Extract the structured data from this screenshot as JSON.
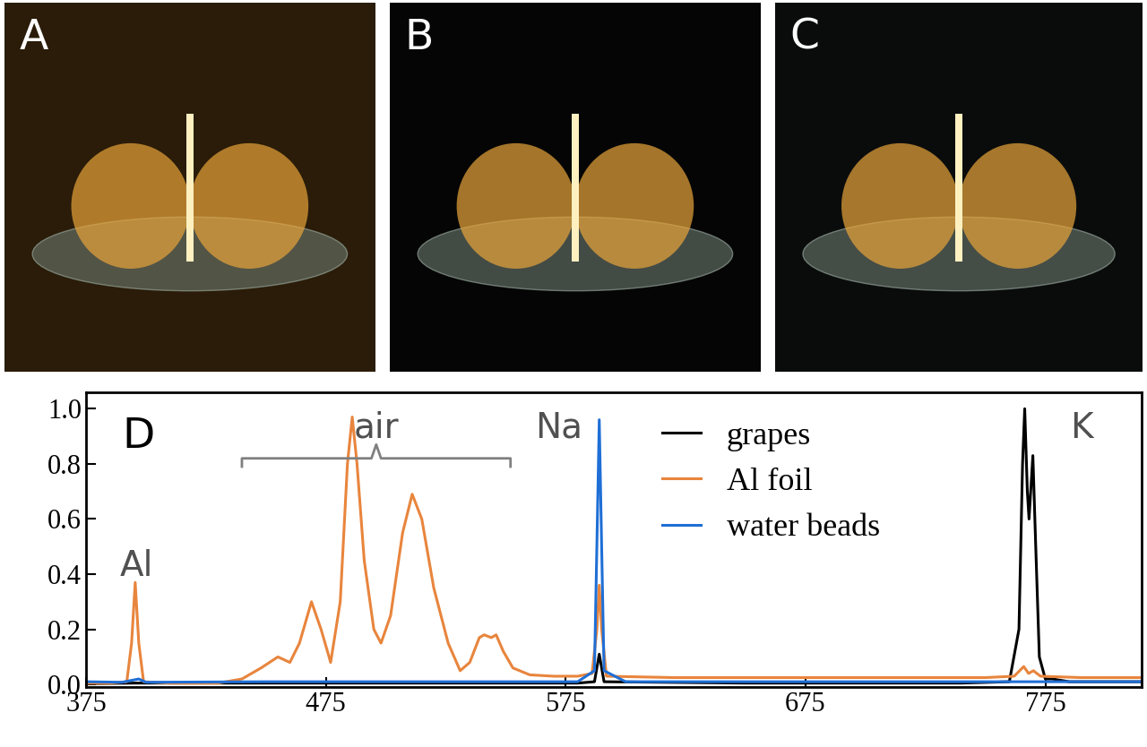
{
  "panels": [
    {
      "label": "A"
    },
    {
      "label": "B"
    },
    {
      "label": "C"
    }
  ],
  "chart_data": {
    "type": "line",
    "xlim": [
      375,
      815
    ],
    "xticks": [
      375,
      475,
      575,
      675,
      775
    ],
    "ylim": [
      -0.01,
      1.06
    ],
    "yticks": [
      {
        "value": 0,
        "label": "0.0"
      },
      {
        "value": 0.2,
        "label": "0.2"
      },
      {
        "value": 0.4,
        "label": "0.4"
      },
      {
        "value": 0.6,
        "label": "0.6"
      },
      {
        "value": 0.8,
        "label": "0.8"
      },
      {
        "value": 1.0,
        "label": "1.0"
      }
    ],
    "legend": "upper right",
    "annotations": [
      {
        "text": "D",
        "x": 390,
        "y": 0.9
      },
      {
        "text": "Al",
        "x": 396,
        "y": 0.43
      },
      {
        "text": "air",
        "x": 496,
        "y": 0.93,
        "span": [
          440,
          552
        ]
      },
      {
        "text": "Na",
        "x": 572,
        "y": 0.93
      },
      {
        "text": "K",
        "x": 790,
        "y": 0.93
      }
    ],
    "series": [
      {
        "name": "grapes",
        "color": "#000000",
        "x": [
          375,
          395.5,
          500,
          580,
          587,
          588,
          589,
          590,
          591,
          650,
          740,
          760,
          764,
          765.5,
          766.4,
          767.5,
          768.2,
          769.8,
          771,
          772.5,
          775,
          778,
          785,
          800,
          815
        ],
        "values": [
          0.003,
          0.005,
          0.005,
          0.005,
          0.01,
          0.06,
          0.11,
          0.06,
          0.01,
          0.005,
          0.005,
          0.01,
          0.2,
          0.8,
          1.0,
          0.7,
          0.6,
          0.83,
          0.5,
          0.1,
          0.02,
          0.02,
          0.01,
          0.01,
          0.01
        ]
      },
      {
        "name": "Al foil",
        "color": "#e8853d",
        "x": [
          375,
          385,
          392,
          394,
          395.5,
          397,
          399,
          410,
          430,
          440,
          448,
          455,
          460,
          464,
          469,
          473,
          477,
          481,
          484,
          486,
          488,
          491,
          495,
          498,
          502,
          507,
          511,
          515,
          520,
          526,
          531,
          535,
          539,
          541,
          544,
          546,
          549,
          553,
          560,
          570,
          580,
          586,
          588,
          589,
          590,
          592,
          620,
          700,
          750,
          762,
          766,
          768,
          770,
          773,
          790,
          815
        ],
        "values": [
          0.005,
          0.005,
          0.01,
          0.15,
          0.37,
          0.15,
          0.01,
          0.005,
          0.005,
          0.02,
          0.06,
          0.1,
          0.08,
          0.15,
          0.3,
          0.2,
          0.08,
          0.3,
          0.8,
          0.97,
          0.8,
          0.45,
          0.2,
          0.15,
          0.25,
          0.55,
          0.69,
          0.6,
          0.35,
          0.15,
          0.05,
          0.08,
          0.17,
          0.18,
          0.17,
          0.18,
          0.12,
          0.06,
          0.035,
          0.03,
          0.03,
          0.04,
          0.2,
          0.36,
          0.2,
          0.03,
          0.025,
          0.025,
          0.025,
          0.03,
          0.065,
          0.04,
          0.05,
          0.03,
          0.025,
          0.025
        ]
      },
      {
        "name": "water beads",
        "color": "#1f6fd6",
        "x": [
          375,
          390,
          397,
          400,
          450,
          500,
          580,
          587,
          588,
          589,
          590,
          591,
          600,
          700,
          800,
          815
        ],
        "values": [
          0.01,
          0.008,
          0.02,
          0.008,
          0.01,
          0.01,
          0.01,
          0.05,
          0.5,
          0.96,
          0.5,
          0.05,
          0.01,
          0.01,
          0.01,
          0.01
        ]
      }
    ]
  }
}
